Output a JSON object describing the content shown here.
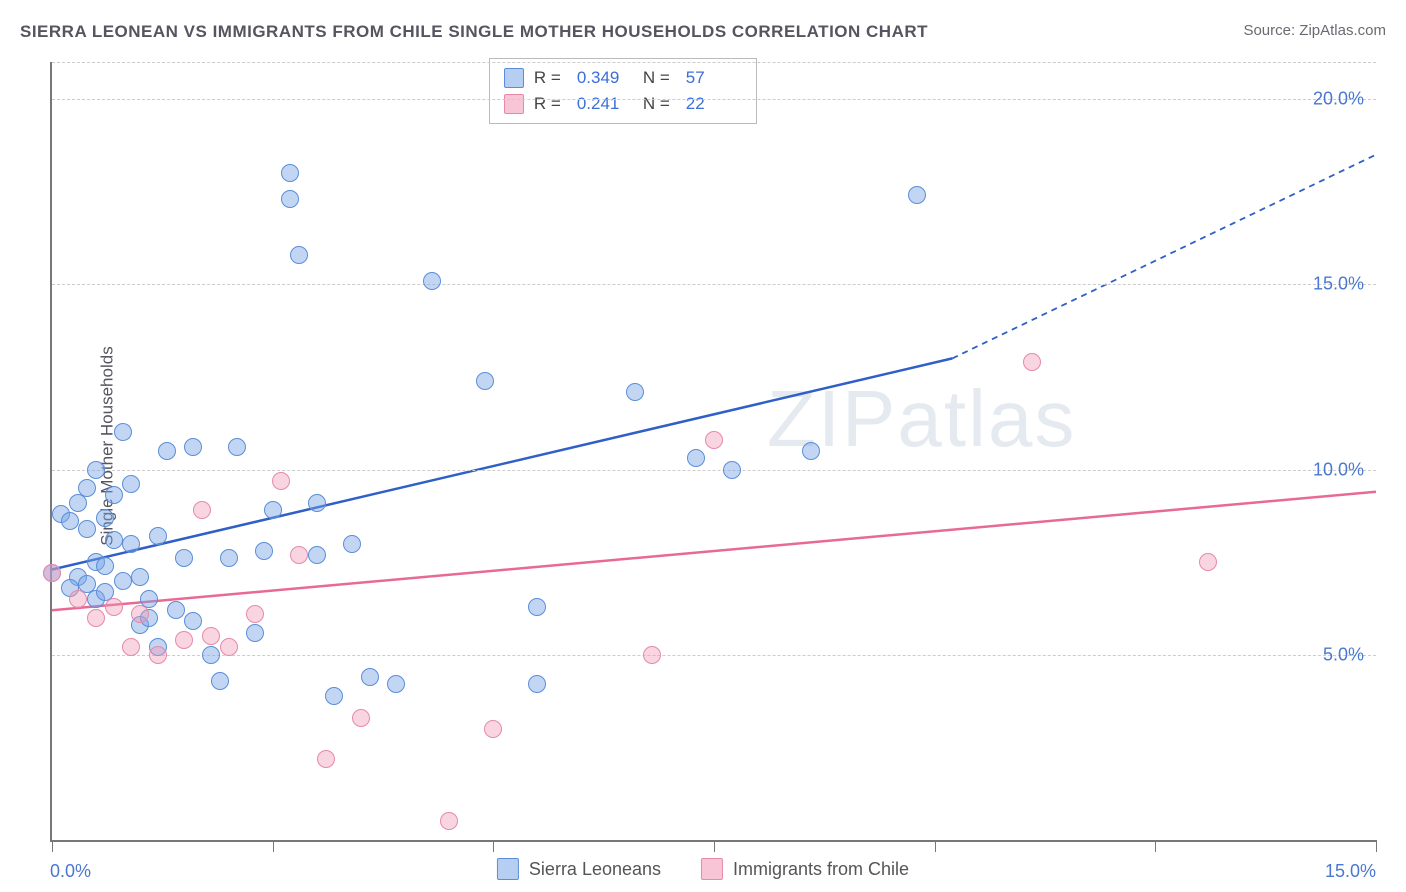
{
  "title": "SIERRA LEONEAN VS IMMIGRANTS FROM CHILE SINGLE MOTHER HOUSEHOLDS CORRELATION CHART",
  "source_label": "Source: ZipAtlas.com",
  "watermark": "ZIPatlas",
  "y_axis_label": "Single Mother Households",
  "chart": {
    "type": "scatter",
    "xlim": [
      0,
      15
    ],
    "ylim": [
      0,
      21
    ],
    "y_ticks": [
      5,
      10,
      15,
      20
    ],
    "y_tick_labels": [
      "5.0%",
      "10.0%",
      "15.0%",
      "20.0%"
    ],
    "x_ticks": [
      0,
      2.5,
      5,
      7.5,
      10,
      12.5,
      15
    ],
    "x_tick_labels_shown": {
      "0": "0.0%",
      "15": "15.0%"
    },
    "background_color": "#ffffff",
    "grid_color": "#cccccc",
    "axis_color": "#777777",
    "marker_size": 18,
    "series": [
      {
        "name": "Sierra Leoneans",
        "color_fill": "rgba(120,165,230,0.45)",
        "color_stroke": "#5a8ed8",
        "R": "0.349",
        "N": "57",
        "trend": {
          "x1": 0,
          "y1": 7.3,
          "x2": 10.2,
          "y2": 13.0,
          "extend_x2": 15,
          "extend_y2": 18.5,
          "color": "#2f5fc7",
          "width": 2.5
        },
        "points": [
          [
            0.0,
            7.2
          ],
          [
            0.1,
            8.8
          ],
          [
            0.2,
            8.6
          ],
          [
            0.3,
            9.1
          ],
          [
            0.3,
            7.1
          ],
          [
            0.4,
            8.4
          ],
          [
            0.4,
            9.5
          ],
          [
            0.5,
            7.5
          ],
          [
            0.5,
            10.0
          ],
          [
            0.6,
            7.4
          ],
          [
            0.6,
            8.7
          ],
          [
            0.7,
            9.3
          ],
          [
            0.7,
            8.1
          ],
          [
            0.8,
            7.0
          ],
          [
            0.8,
            11.0
          ],
          [
            0.9,
            9.6
          ],
          [
            0.9,
            8.0
          ],
          [
            1.0,
            7.1
          ],
          [
            1.0,
            5.8
          ],
          [
            1.1,
            6.0
          ],
          [
            1.1,
            6.5
          ],
          [
            1.2,
            5.2
          ],
          [
            1.2,
            8.2
          ],
          [
            1.3,
            10.5
          ],
          [
            1.4,
            6.2
          ],
          [
            1.5,
            7.6
          ],
          [
            1.6,
            5.9
          ],
          [
            1.6,
            10.6
          ],
          [
            1.8,
            5.0
          ],
          [
            1.9,
            4.3
          ],
          [
            2.0,
            7.6
          ],
          [
            2.1,
            10.6
          ],
          [
            2.3,
            5.6
          ],
          [
            2.4,
            7.8
          ],
          [
            2.5,
            8.9
          ],
          [
            2.7,
            18.0
          ],
          [
            2.7,
            17.3
          ],
          [
            2.8,
            15.8
          ],
          [
            3.0,
            7.7
          ],
          [
            3.0,
            9.1
          ],
          [
            3.2,
            3.9
          ],
          [
            3.4,
            8.0
          ],
          [
            3.6,
            4.4
          ],
          [
            3.9,
            4.2
          ],
          [
            4.3,
            15.1
          ],
          [
            4.9,
            12.4
          ],
          [
            5.5,
            6.3
          ],
          [
            5.5,
            4.2
          ],
          [
            6.6,
            12.1
          ],
          [
            7.3,
            10.3
          ],
          [
            7.7,
            10.0
          ],
          [
            8.6,
            10.5
          ],
          [
            9.8,
            17.4
          ],
          [
            0.2,
            6.8
          ],
          [
            0.4,
            6.9
          ],
          [
            0.5,
            6.5
          ],
          [
            0.6,
            6.7
          ]
        ]
      },
      {
        "name": "Immigrants from Chile",
        "color_fill": "rgba(240,150,180,0.40)",
        "color_stroke": "#e68aa8",
        "R": "0.241",
        "N": "22",
        "trend": {
          "x1": 0,
          "y1": 6.2,
          "x2": 15,
          "y2": 9.4,
          "color": "#e76a95",
          "width": 2.5
        },
        "points": [
          [
            0.0,
            7.2
          ],
          [
            0.3,
            6.5
          ],
          [
            0.5,
            6.0
          ],
          [
            0.7,
            6.3
          ],
          [
            0.9,
            5.2
          ],
          [
            1.0,
            6.1
          ],
          [
            1.2,
            5.0
          ],
          [
            1.5,
            5.4
          ],
          [
            1.7,
            8.9
          ],
          [
            1.8,
            5.5
          ],
          [
            2.0,
            5.2
          ],
          [
            2.3,
            6.1
          ],
          [
            2.6,
            9.7
          ],
          [
            2.8,
            7.7
          ],
          [
            3.1,
            2.2
          ],
          [
            3.5,
            3.3
          ],
          [
            4.5,
            0.5
          ],
          [
            5.0,
            3.0
          ],
          [
            6.8,
            5.0
          ],
          [
            7.5,
            10.8
          ],
          [
            11.1,
            12.9
          ],
          [
            13.1,
            7.5
          ]
        ]
      }
    ]
  },
  "top_legend": {
    "R_label": "R =",
    "N_label": "N ="
  },
  "bottom_legend": {
    "items": [
      "Sierra Leoneans",
      "Immigrants from Chile"
    ]
  }
}
